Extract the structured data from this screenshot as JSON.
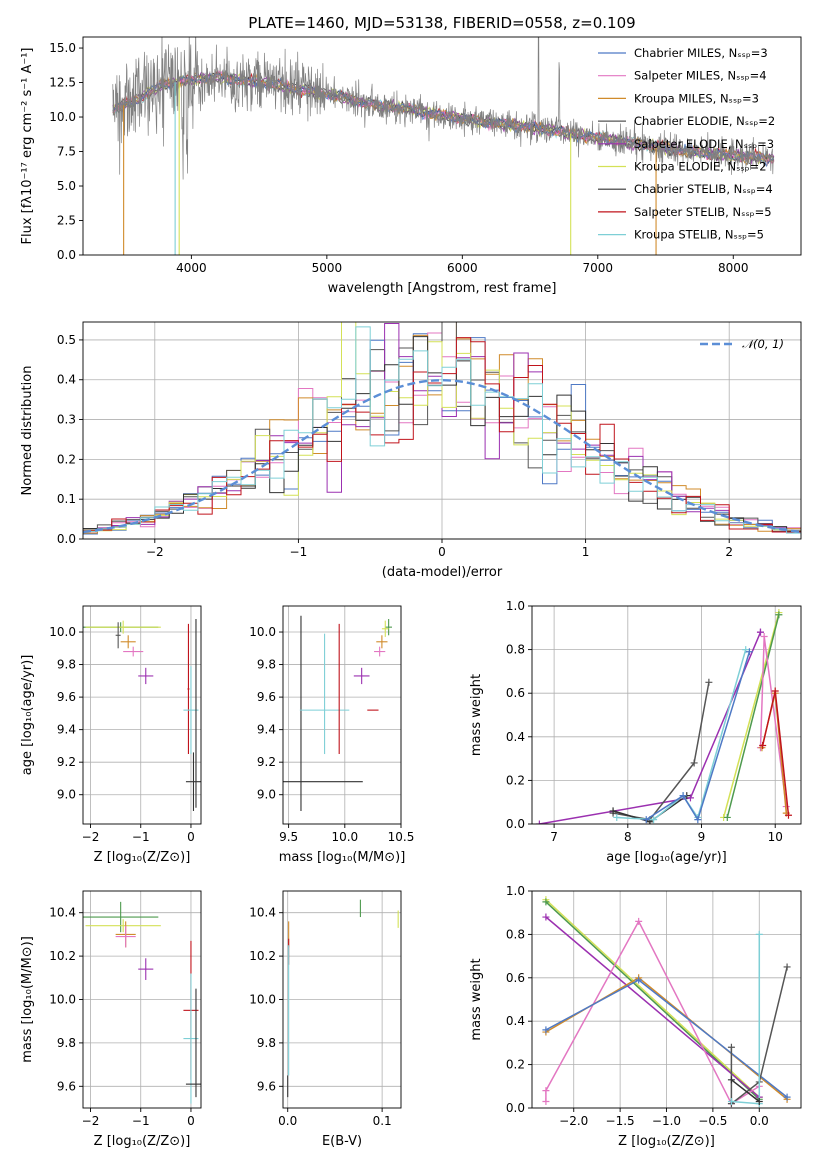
{
  "chart_data": [
    {
      "id": "spectrum",
      "type": "line",
      "title": "PLATE=1460, MJD=53138, FIBERID=0558, z=0.109",
      "xlabel": "wavelength [Angstrom, rest frame]",
      "ylabel": "Flux [fλ10⁻¹⁷ erg cm⁻² s⁻¹ A⁻¹]",
      "xlim": [
        3200,
        8500
      ],
      "ylim": [
        0,
        15.8
      ],
      "xticks": [
        4000,
        5000,
        6000,
        7000,
        8000
      ],
      "yticks": [
        0.0,
        2.5,
        5.0,
        7.5,
        10.0,
        12.5,
        15.0
      ],
      "legend_position": "top-right",
      "legend": [
        {
          "label": "Chabrier MILES, Nₛₛₚ=3",
          "color": "#4e79c5"
        },
        {
          "label": "Salpeter MILES, Nₛₛₚ=4",
          "color": "#e377c2"
        },
        {
          "label": "Kroupa MILES, Nₛₛₚ=3",
          "color": "#d08b2b"
        },
        {
          "label": "Chabrier ELODIE, Nₛₛₚ=2",
          "color": "#555555"
        },
        {
          "label": "Salpeter ELODIE, Nₛₛₚ=3",
          "color": "#9b30b0"
        },
        {
          "label": "Kroupa ELODIE, Nₛₛₚ=2",
          "color": "#d4e157"
        },
        {
          "label": "Chabrier STELIB, Nₛₛₚ=4",
          "color": "#333333"
        },
        {
          "label": "Salpeter STELIB, Nₛₛₚ=5",
          "color": "#c0141c"
        },
        {
          "label": "Kroupa STELIB, Nₛₛₚ=5",
          "color": "#7ecfd6"
        }
      ],
      "continuum": [
        [
          3400,
          10.4
        ],
        [
          3600,
          11.3
        ],
        [
          3800,
          12.4
        ],
        [
          4000,
          12.7
        ],
        [
          4200,
          12.9
        ],
        [
          4400,
          12.6
        ],
        [
          4600,
          12.4
        ],
        [
          4800,
          12.0
        ],
        [
          5000,
          11.7
        ],
        [
          5200,
          11.2
        ],
        [
          5400,
          10.8
        ],
        [
          5600,
          10.6
        ],
        [
          5800,
          10.2
        ],
        [
          6000,
          9.9
        ],
        [
          6200,
          9.6
        ],
        [
          6400,
          9.4
        ],
        [
          6600,
          9.1
        ],
        [
          6800,
          8.8
        ],
        [
          7000,
          8.5
        ],
        [
          7200,
          8.2
        ],
        [
          7400,
          7.9
        ],
        [
          7600,
          7.6
        ],
        [
          7800,
          7.4
        ],
        [
          8000,
          7.2
        ],
        [
          8300,
          7.0
        ]
      ],
      "observed_color": "#808080"
    },
    {
      "id": "residuals",
      "type": "line",
      "xlabel": "(data-model)/error",
      "ylabel": "Normed distribution",
      "xlim": [
        -2.5,
        2.5
      ],
      "ylim": [
        0,
        0.545
      ],
      "xticks": [
        -2,
        -1,
        0,
        1,
        2
      ],
      "yticks": [
        0.0,
        0.1,
        0.2,
        0.3,
        0.4,
        0.5
      ],
      "legend_position": "top-right",
      "legend": [
        {
          "label": "𝒩(0, 1)",
          "color": "#5b8ed6",
          "style": "dashed"
        }
      ],
      "normal": {
        "mean": 0,
        "sigma": 1
      }
    },
    {
      "id": "age-vs-Z",
      "type": "scatter",
      "xlabel": "Z [log₁₀(Z/Z⊙)]",
      "ylabel": "age  [log₁₀(age/yr)]",
      "xlim": [
        -2.15,
        0.2
      ],
      "ylim": [
        8.82,
        10.16
      ],
      "xticks": [
        -2,
        -1,
        0
      ],
      "yticks": [
        9.0,
        9.2,
        9.4,
        9.6,
        9.8,
        10.0
      ],
      "points": [
        {
          "x": -1.4,
          "y": 10.03,
          "xerr": 0.75,
          "yerr": 0.03,
          "color": "#4e9a4e"
        },
        {
          "x": -1.25,
          "y": 9.94,
          "xerr": 0.15,
          "yerr": 0.04,
          "color": "#d08b2b"
        },
        {
          "x": -1.15,
          "y": 9.88,
          "xerr": 0.2,
          "yerr": 0.03,
          "color": "#e377c2"
        },
        {
          "x": -0.9,
          "y": 9.73,
          "xerr": 0.15,
          "yerr": 0.05,
          "color": "#9b30b0"
        },
        {
          "x": -1.35,
          "y": 10.03,
          "xerr": 0.75,
          "yerr": 0.04,
          "color": "#d4e157"
        },
        {
          "x": -1.45,
          "y": 9.98,
          "xerr": 0.05,
          "yerr": 0.08,
          "color": "#555555"
        },
        {
          "x": -0.05,
          "y": 9.65,
          "xerr": 0.02,
          "yerr": 0.4,
          "color": "#c0141c"
        },
        {
          "x": 0.0,
          "y": 9.52,
          "xerr": 0.15,
          "yerr": 0.27,
          "color": "#7ecfd6"
        },
        {
          "x": 0.05,
          "y": 9.08,
          "xerr": 0.15,
          "yerr": 0.18,
          "color": "#333333"
        },
        {
          "x": 0.1,
          "y": 9.5,
          "xerr": 0.0,
          "yerr": 0.58,
          "color": "#333333"
        }
      ]
    },
    {
      "id": "age-vs-mass",
      "type": "scatter",
      "xlabel": "mass [log₁₀(M/M⊙)]",
      "xlim": [
        9.45,
        10.5
      ],
      "ylim": [
        8.82,
        10.16
      ],
      "xticks": [
        9.5,
        10.0,
        10.5
      ],
      "yticks": [
        9.0,
        9.2,
        9.4,
        9.6,
        9.8,
        10.0
      ],
      "points": [
        {
          "x": 9.61,
          "y": 9.5,
          "xerr": 0.0,
          "yerr": 0.6,
          "color": "#333333"
        },
        {
          "x": 9.61,
          "y": 9.08,
          "xerr": 0.55,
          "yerr": 0.0,
          "color": "#333333"
        },
        {
          "x": 9.82,
          "y": 9.62,
          "xerr": 0.0,
          "yerr": 0.37,
          "color": "#7ecfd6"
        },
        {
          "x": 9.82,
          "y": 9.52,
          "xerr": 0.22,
          "yerr": 0.0,
          "color": "#7ecfd6"
        },
        {
          "x": 9.95,
          "y": 9.65,
          "xerr": 0.0,
          "yerr": 0.4,
          "color": "#c0141c"
        },
        {
          "x": 10.25,
          "y": 9.52,
          "xerr": 0.05,
          "yerr": 0.0,
          "color": "#c0141c"
        },
        {
          "x": 10.15,
          "y": 9.73,
          "xerr": 0.07,
          "yerr": 0.05,
          "color": "#9b30b0"
        },
        {
          "x": 10.33,
          "y": 9.94,
          "xerr": 0.05,
          "yerr": 0.04,
          "color": "#d08b2b"
        },
        {
          "x": 10.31,
          "y": 9.88,
          "xerr": 0.05,
          "yerr": 0.03,
          "color": "#e377c2"
        },
        {
          "x": 10.39,
          "y": 10.03,
          "xerr": 0.03,
          "yerr": 0.05,
          "color": "#4e9a4e"
        },
        {
          "x": 10.36,
          "y": 10.02,
          "xerr": 0.03,
          "yerr": 0.05,
          "color": "#d4e157"
        }
      ]
    },
    {
      "id": "mass-weight-vs-age",
      "type": "line",
      "xlabel": "age  [log₁₀(age/yr)]",
      "ylabel": "mass weight",
      "xlim": [
        6.7,
        10.35
      ],
      "ylim": [
        0,
        1.0
      ],
      "xticks": [
        7,
        8,
        9,
        10
      ],
      "yticks": [
        0.0,
        0.2,
        0.4,
        0.6,
        0.8,
        1.0
      ],
      "series": [
        {
          "color": "#9b30b0",
          "points": [
            [
              6.8,
              0.0
            ],
            [
              8.85,
              0.12
            ],
            [
              9.8,
              0.88
            ],
            [
              9.8,
              0.88
            ]
          ]
        },
        {
          "color": "#555555",
          "points": [
            [
              7.8,
              0.05
            ],
            [
              8.3,
              0.02
            ],
            [
              8.9,
              0.28
            ],
            [
              9.1,
              0.65
            ]
          ]
        },
        {
          "color": "#333333",
          "points": [
            [
              7.8,
              0.06
            ],
            [
              8.3,
              0.01
            ],
            [
              8.8,
              0.13
            ]
          ]
        },
        {
          "color": "#7ecfd6",
          "points": [
            [
              7.85,
              0.03
            ],
            [
              8.35,
              0.02
            ],
            [
              8.75,
              0.13
            ],
            [
              8.95,
              0.03
            ],
            [
              9.6,
              0.8
            ]
          ]
        },
        {
          "color": "#4e79c5",
          "points": [
            [
              8.25,
              0.02
            ],
            [
              8.75,
              0.13
            ],
            [
              8.95,
              0.02
            ],
            [
              9.65,
              0.79
            ]
          ]
        },
        {
          "color": "#d4e157",
          "points": [
            [
              9.3,
              0.03
            ],
            [
              10.05,
              0.97
            ]
          ]
        },
        {
          "color": "#4e9a4e",
          "points": [
            [
              9.35,
              0.03
            ],
            [
              10.05,
              0.96
            ]
          ]
        },
        {
          "color": "#e377c2",
          "points": [
            [
              9.8,
              0.35
            ],
            [
              9.85,
              0.86
            ],
            [
              10.15,
              0.08
            ]
          ]
        },
        {
          "color": "#d08b2b",
          "points": [
            [
              9.82,
              0.35
            ],
            [
              10.0,
              0.6
            ],
            [
              10.15,
              0.05
            ]
          ]
        },
        {
          "color": "#c0141c",
          "points": [
            [
              9.83,
              0.36
            ],
            [
              10.0,
              0.61
            ],
            [
              10.18,
              0.04
            ]
          ]
        }
      ]
    },
    {
      "id": "mass-vs-Z",
      "type": "scatter",
      "xlabel": "Z [log₁₀(Z/Z⊙)]",
      "ylabel": "mass [log₁₀(M/M⊙)]",
      "xlim": [
        -2.15,
        0.2
      ],
      "ylim": [
        9.5,
        10.5
      ],
      "xticks": [
        -2,
        -1,
        0
      ],
      "yticks": [
        9.6,
        9.8,
        10.0,
        10.2,
        10.4
      ],
      "points": [
        {
          "x": -1.4,
          "y": 10.38,
          "xerr": 0.75,
          "yerr": 0.07,
          "color": "#4e9a4e"
        },
        {
          "x": -1.35,
          "y": 10.34,
          "xerr": 0.75,
          "yerr": 0.03,
          "color": "#d4e157"
        },
        {
          "x": -1.3,
          "y": 10.3,
          "xerr": 0.2,
          "yerr": 0.06,
          "color": "#d08b2b"
        },
        {
          "x": -1.3,
          "y": 10.29,
          "xerr": 0.2,
          "yerr": 0.05,
          "color": "#e377c2"
        },
        {
          "x": -0.9,
          "y": 10.14,
          "xerr": 0.15,
          "yerr": 0.05,
          "color": "#9b30b0"
        },
        {
          "x": 0.0,
          "y": 9.95,
          "xerr": 0.15,
          "yerr": 0.32,
          "color": "#c0141c"
        },
        {
          "x": 0.0,
          "y": 9.82,
          "xerr": 0.15,
          "yerr": 0.3,
          "color": "#7ecfd6"
        },
        {
          "x": 0.05,
          "y": 9.61,
          "xerr": 0.15,
          "yerr": 0.0,
          "color": "#333333"
        },
        {
          "x": 0.1,
          "y": 9.8,
          "xerr": 0.0,
          "yerr": 0.25,
          "color": "#333333"
        }
      ]
    },
    {
      "id": "mass-vs-EBV",
      "type": "scatter",
      "xlabel": "E(B-V)",
      "xlim": [
        -0.005,
        0.12
      ],
      "ylim": [
        9.5,
        10.5
      ],
      "xticks": [
        0.0,
        0.1
      ],
      "yticks": [
        9.6,
        9.8,
        10.0,
        10.2,
        10.4
      ],
      "points": [
        {
          "x": 0.077,
          "y": 10.42,
          "xerr": 0.0,
          "yerr": 0.04,
          "color": "#4e9a4e"
        },
        {
          "x": 0.117,
          "y": 10.37,
          "xerr": 0.0,
          "yerr": 0.04,
          "color": "#d4e157"
        },
        {
          "x": 0.001,
          "y": 10.3,
          "xerr": 0.0,
          "yerr": 0.06,
          "color": "#d08b2b"
        },
        {
          "x": 0.001,
          "y": 10.22,
          "xerr": 0.0,
          "yerr": 0.06,
          "color": "#c0141c"
        },
        {
          "x": 0.001,
          "y": 9.95,
          "xerr": 0.0,
          "yerr": 0.3,
          "color": "#7ecfd6"
        },
        {
          "x": 0.0,
          "y": 9.6,
          "xerr": 0.0,
          "yerr": 0.05,
          "color": "#333333"
        }
      ]
    },
    {
      "id": "mass-weight-vs-Z",
      "type": "line",
      "xlabel": "Z [log₁₀(Z/Z⊙)]",
      "ylabel": "mass weight",
      "xlim": [
        -2.45,
        0.45
      ],
      "ylim": [
        0,
        1.0
      ],
      "xticks": [
        -2.0,
        -1.5,
        -1.0,
        -0.5,
        0.0
      ],
      "yticks": [
        0.0,
        0.2,
        0.4,
        0.6,
        0.8,
        1.0
      ],
      "series": [
        {
          "color": "#d4e157",
          "points": [
            [
              -2.3,
              0.96
            ],
            [
              0.0,
              0.05
            ]
          ]
        },
        {
          "color": "#4e9a4e",
          "points": [
            [
              -2.3,
              0.95
            ],
            [
              0.0,
              0.04
            ]
          ]
        },
        {
          "color": "#9b30b0",
          "points": [
            [
              -2.3,
              0.88
            ],
            [
              0.0,
              0.05
            ]
          ]
        },
        {
          "color": "#e377c2",
          "points": [
            [
              -2.3,
              0.03
            ],
            [
              -2.3,
              0.08
            ],
            [
              -1.3,
              0.86
            ],
            [
              -0.3,
              0.02
            ],
            [
              0.0,
              0.1
            ]
          ]
        },
        {
          "color": "#d08b2b",
          "points": [
            [
              -2.3,
              0.35
            ],
            [
              -1.3,
              0.6
            ],
            [
              0.3,
              0.04
            ]
          ]
        },
        {
          "color": "#4e79c5",
          "points": [
            [
              -2.3,
              0.36
            ],
            [
              -1.3,
              0.59
            ],
            [
              0.3,
              0.05
            ]
          ]
        },
        {
          "color": "#555555",
          "points": [
            [
              -0.3,
              0.28
            ],
            [
              -0.3,
              0.02
            ],
            [
              0.0,
              0.12
            ],
            [
              0.3,
              0.65
            ]
          ]
        },
        {
          "color": "#7ecfd6",
          "points": [
            [
              0.0,
              0.8
            ],
            [
              0.0,
              0.02
            ],
            [
              -0.3,
              0.03
            ]
          ]
        },
        {
          "color": "#333333",
          "points": [
            [
              -0.3,
              0.13
            ],
            [
              0.0,
              0.03
            ]
          ]
        }
      ]
    }
  ]
}
